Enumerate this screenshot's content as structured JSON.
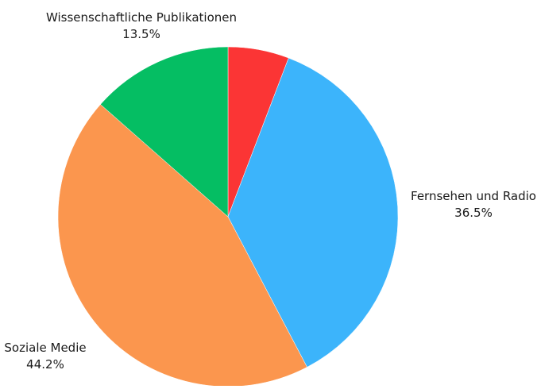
{
  "chart_data": {
    "type": "pie",
    "title": "",
    "slices": [
      {
        "label": "",
        "value": 5.8,
        "value_label": "",
        "color": "#fb3535"
      },
      {
        "label": "Fernsehen und Radio",
        "value": 36.5,
        "value_label": "36.5%",
        "color": "#3cb4fb"
      },
      {
        "label": "Soziale Medie",
        "value": 44.2,
        "value_label": "44.2%",
        "color": "#fb964e"
      },
      {
        "label": "Wissenschaftliche Publikationen",
        "value": 13.5,
        "value_label": "13.5%",
        "color": "#05be63"
      }
    ],
    "start_angle": "12 o'clock",
    "direction": "clockwise",
    "legend": "none"
  }
}
